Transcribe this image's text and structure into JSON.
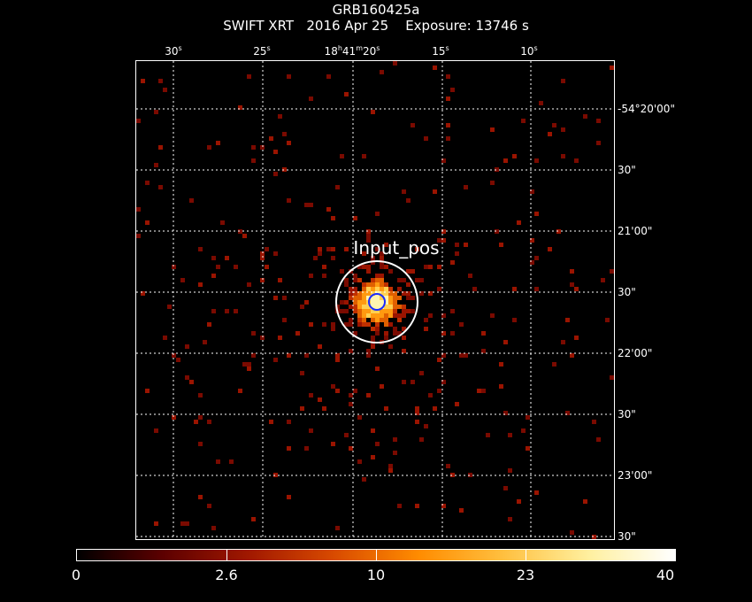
{
  "header": {
    "line1": "GRB160425a",
    "line2": "SWIFT XRT   2016 Apr 25    Exposure: 13746 s"
  },
  "ra_ticks": [
    {
      "main": "30",
      "unit": "s"
    },
    {
      "main": "25",
      "unit": "s"
    },
    {
      "main": "18",
      "unit": "h",
      "main2": "41",
      "unit2": "m",
      "main3": "20",
      "unit3": "s"
    },
    {
      "main": "15",
      "unit": "s"
    },
    {
      "main": "10",
      "unit": "s"
    }
  ],
  "dec_ticks": [
    "-54°20'00\"",
    "30\"",
    "21'00\"",
    "30\"",
    "22'00\"",
    "30\"",
    "23'00\"",
    "30\""
  ],
  "region_label": "Input_pos",
  "colorbar": {
    "labels": [
      "0",
      "2.6",
      "10",
      "23",
      "40"
    ],
    "colors": [
      "#000000",
      "#5c0000",
      "#a01800",
      "#d84a00",
      "#ff8c00",
      "#ffc040",
      "#fff0a0",
      "#ffffff"
    ]
  },
  "colors": {
    "circle_outer": "#ffffff",
    "circle_inner": "#1a2bff",
    "grid": "#ffffff"
  }
}
